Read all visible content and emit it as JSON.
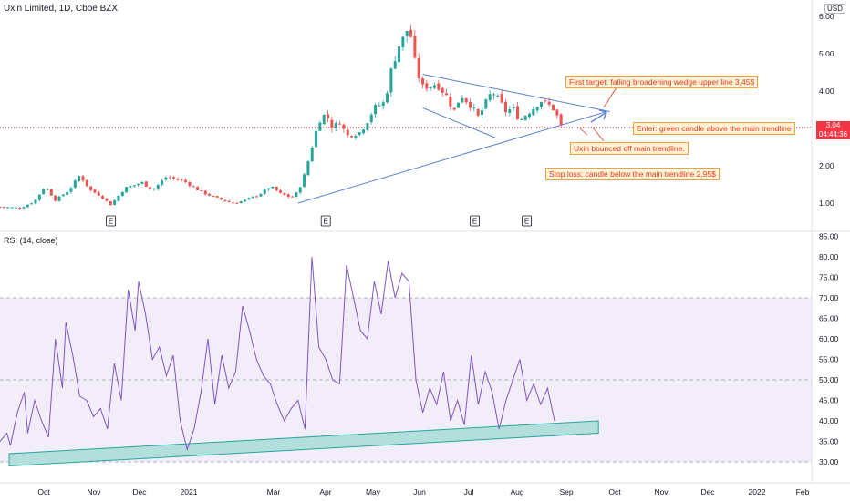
{
  "price_panel": {
    "title": "Uxin Limited, 1D, Cboe BZX",
    "currency": "USD",
    "last_price": "3.04",
    "countdown": "04:44:36",
    "earnings_marker": "E",
    "colors": {
      "up": "#26a69a",
      "down": "#ef5350",
      "trendline": "#5b7fd1",
      "last_price_line": "#f23645"
    }
  },
  "rsi_panel": {
    "title": "RSI (14, close)",
    "colors": {
      "line": "#7e57c2",
      "band_fill": "#ede7f6",
      "support_channel": "#b2dfdb",
      "support_edge": "#26a69a"
    }
  },
  "annotations": {
    "first_target": "First target: falling broadening wedge upper line 3,45$",
    "enter": "Enter: green candle above the main trendline",
    "bounce": "Uxin bounced off main trendline.",
    "stop_loss": "Stop loss: candle below the main trendline 2,95$"
  },
  "chart_data": [
    {
      "type": "candlestick",
      "title": "Uxin Limited, 1D, Cboe BZX",
      "y_tick_labels": [
        "1.00",
        "2.00",
        "3.00",
        "4.00",
        "5.00",
        "6.00"
      ],
      "ylim": [
        0.8,
        6.2
      ],
      "x_tick_labels": [
        "Oct",
        "Nov",
        "Dec",
        "2021",
        "Mar",
        "Apr",
        "May",
        "Jun",
        "Jul",
        "Aug",
        "Sep",
        "Oct",
        "Nov",
        "Dec",
        "2022",
        "Feb"
      ],
      "close_path": [
        [
          0.0,
          0.9
        ],
        [
          0.06,
          0.87
        ],
        [
          0.1,
          1.05
        ],
        [
          0.13,
          1.45
        ],
        [
          0.16,
          1.08
        ],
        [
          0.2,
          1.35
        ],
        [
          0.23,
          1.75
        ],
        [
          0.26,
          1.35
        ],
        [
          0.29,
          1.2
        ],
        [
          0.32,
          0.95
        ],
        [
          0.36,
          1.4
        ],
        [
          0.41,
          1.55
        ],
        [
          0.44,
          1.35
        ],
        [
          0.48,
          1.7
        ],
        [
          0.53,
          1.6
        ],
        [
          0.58,
          1.3
        ],
        [
          0.63,
          1.12
        ],
        [
          0.67,
          1.0
        ],
        [
          0.7,
          1.05
        ],
        [
          0.74,
          1.2
        ],
        [
          0.76,
          1.3
        ],
        [
          0.78,
          1.45
        ],
        [
          0.81,
          1.25
        ],
        [
          0.84,
          1.15
        ],
        [
          0.86,
          1.3
        ],
        [
          0.88,
          1.8
        ],
        [
          0.9,
          2.5
        ],
        [
          0.92,
          3.2
        ],
        [
          0.94,
          3.4
        ],
        [
          0.96,
          3.0
        ],
        [
          0.98,
          3.2
        ],
        [
          1.0,
          2.8
        ],
        [
          1.04,
          2.9
        ],
        [
          1.06,
          3.2
        ],
        [
          1.08,
          3.55
        ],
        [
          1.11,
          3.7
        ],
        [
          1.13,
          4.6
        ],
        [
          1.15,
          5.2
        ],
        [
          1.17,
          5.5
        ],
        [
          1.18,
          5.8
        ],
        [
          1.2,
          4.6
        ],
        [
          1.22,
          4.1
        ],
        [
          1.26,
          4.2
        ],
        [
          1.29,
          3.85
        ],
        [
          1.31,
          3.45
        ],
        [
          1.33,
          3.9
        ],
        [
          1.36,
          3.6
        ],
        [
          1.38,
          3.3
        ],
        [
          1.4,
          3.65
        ],
        [
          1.42,
          4.0
        ],
        [
          1.44,
          3.75
        ],
        [
          1.46,
          3.45
        ],
        [
          1.48,
          3.55
        ],
        [
          1.5,
          3.2
        ],
        [
          1.52,
          3.4
        ],
        [
          1.54,
          3.55
        ],
        [
          1.56,
          3.75
        ],
        [
          1.58,
          3.65
        ],
        [
          1.6,
          3.5
        ],
        [
          1.62,
          3.04
        ]
      ],
      "earnings_dates": [
        0.32,
        0.94,
        1.37,
        1.52
      ],
      "main_trendline": [
        [
          0.86,
          1.0
        ],
        [
          1.75,
          3.45
        ]
      ],
      "wedge_upper": [
        [
          1.22,
          4.45
        ],
        [
          1.76,
          3.45
        ]
      ],
      "wedge_lower": [
        [
          1.22,
          3.55
        ],
        [
          1.43,
          2.75
        ]
      ],
      "last_price": 3.04
    },
    {
      "type": "line",
      "title": "RSI (14, close)",
      "y_tick_labels": [
        "30.00",
        "35.00",
        "40.00",
        "45.00",
        "50.00",
        "55.00",
        "60.00",
        "65.00",
        "70.00",
        "75.00",
        "80.00",
        "85.00"
      ],
      "ylim": [
        28.5,
        86
      ],
      "bands": [
        30,
        50,
        70
      ],
      "series": [
        {
          "values": [
            [
              0.0,
              35
            ],
            [
              0.02,
              37
            ],
            [
              0.03,
              34
            ],
            [
              0.05,
              42
            ],
            [
              0.07,
              47
            ],
            [
              0.08,
              37
            ],
            [
              0.1,
              45
            ],
            [
              0.12,
              40
            ],
            [
              0.14,
              36
            ],
            [
              0.16,
              60
            ],
            [
              0.18,
              48
            ],
            [
              0.19,
              64
            ],
            [
              0.21,
              56
            ],
            [
              0.23,
              46
            ],
            [
              0.25,
              45
            ],
            [
              0.27,
              41
            ],
            [
              0.29,
              43
            ],
            [
              0.31,
              38
            ],
            [
              0.33,
              54
            ],
            [
              0.35,
              45
            ],
            [
              0.37,
              72
            ],
            [
              0.39,
              62
            ],
            [
              0.4,
              74
            ],
            [
              0.42,
              66
            ],
            [
              0.44,
              55
            ],
            [
              0.46,
              58
            ],
            [
              0.48,
              51
            ],
            [
              0.5,
              56
            ],
            [
              0.52,
              40
            ],
            [
              0.54,
              33
            ],
            [
              0.56,
              38
            ],
            [
              0.58,
              47
            ],
            [
              0.6,
              60
            ],
            [
              0.62,
              44
            ],
            [
              0.64,
              56
            ],
            [
              0.66,
              48
            ],
            [
              0.68,
              52
            ],
            [
              0.7,
              68
            ],
            [
              0.72,
              62
            ],
            [
              0.74,
              55
            ],
            [
              0.76,
              51
            ],
            [
              0.78,
              49
            ],
            [
              0.8,
              44
            ],
            [
              0.82,
              40
            ],
            [
              0.84,
              43
            ],
            [
              0.86,
              45
            ],
            [
              0.88,
              38
            ],
            [
              0.9,
              80
            ],
            [
              0.92,
              58
            ],
            [
              0.94,
              55
            ],
            [
              0.96,
              50
            ],
            [
              0.98,
              49
            ],
            [
              1.0,
              78
            ],
            [
              1.02,
              70
            ],
            [
              1.04,
              62
            ],
            [
              1.06,
              60
            ],
            [
              1.08,
              74
            ],
            [
              1.1,
              66
            ],
            [
              1.12,
              79
            ],
            [
              1.14,
              70
            ],
            [
              1.16,
              76
            ],
            [
              1.18,
              74
            ],
            [
              1.2,
              50
            ],
            [
              1.22,
              42
            ],
            [
              1.24,
              48
            ],
            [
              1.26,
              44
            ],
            [
              1.28,
              52
            ],
            [
              1.3,
              40
            ],
            [
              1.32,
              45
            ],
            [
              1.34,
              39
            ],
            [
              1.36,
              56
            ],
            [
              1.38,
              44
            ],
            [
              1.4,
              52
            ],
            [
              1.42,
              47
            ],
            [
              1.44,
              38
            ],
            [
              1.46,
              45
            ],
            [
              1.48,
              50
            ],
            [
              1.5,
              55
            ],
            [
              1.52,
              45
            ],
            [
              1.54,
              49
            ],
            [
              1.56,
              44
            ],
            [
              1.58,
              48
            ],
            [
              1.6,
              40
            ]
          ]
        }
      ],
      "support_channel": {
        "start": [
          0.0,
          32
        ],
        "end": [
          1.64,
          40
        ],
        "height": 3
      }
    }
  ]
}
